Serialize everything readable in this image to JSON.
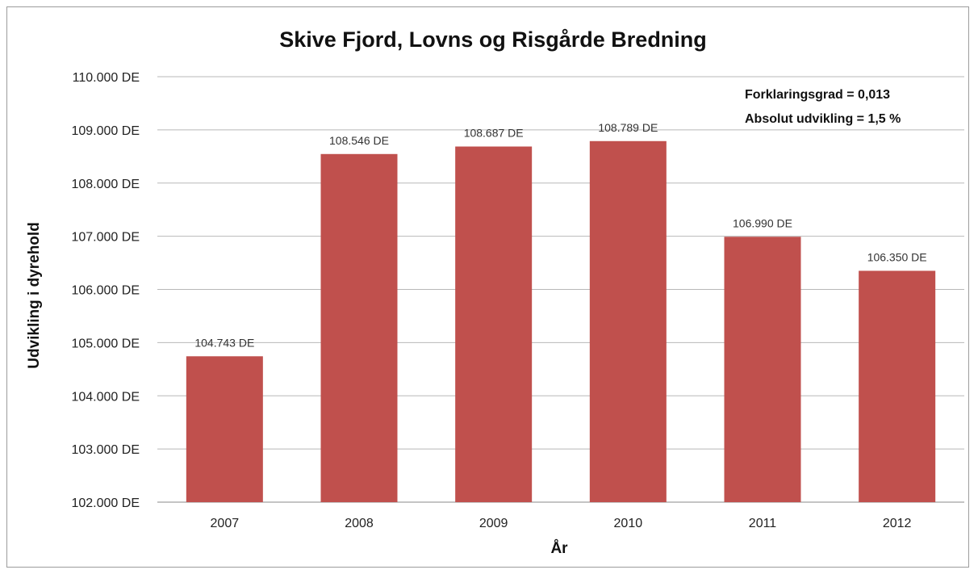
{
  "chart_data": {
    "type": "bar",
    "title": "Skive Fjord, Lovns og Risgårde Bredning",
    "xlabel": "År",
    "ylabel": "Udvikling i dyrehold",
    "categories": [
      "2007",
      "2008",
      "2009",
      "2010",
      "2011",
      "2012"
    ],
    "values": [
      104743,
      108546,
      108687,
      108789,
      106990,
      106350
    ],
    "data_labels": [
      "104.743 DE",
      "108.546 DE",
      "108.687 DE",
      "108.789 DE",
      "106.990 DE",
      "106.350 DE"
    ],
    "ylim": [
      102000,
      110000
    ],
    "yticks": [
      102000,
      103000,
      104000,
      105000,
      106000,
      107000,
      108000,
      109000,
      110000
    ],
    "ytick_labels": [
      "102.000 DE",
      "103.000 DE",
      "104.000 DE",
      "105.000 DE",
      "106.000 DE",
      "107.000 DE",
      "108.000 DE",
      "109.000 DE",
      "110.000 DE"
    ],
    "grid": true,
    "legend": "none",
    "bar_color": "#c0504d",
    "annotations": [
      "Forklaringsgrad = 0,013",
      "Absolut udvikling = 1,5 %"
    ]
  }
}
